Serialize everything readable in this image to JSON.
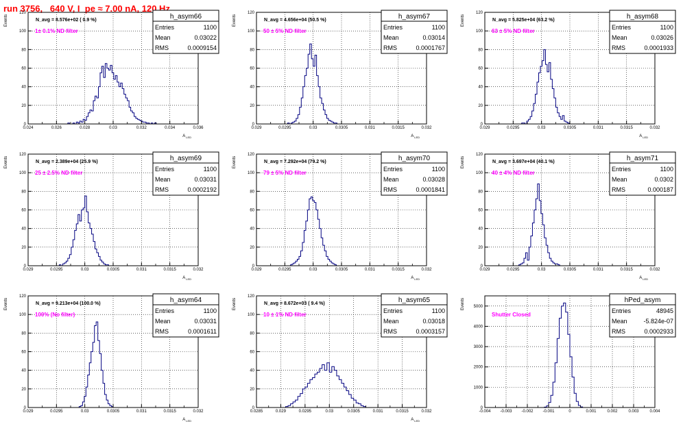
{
  "canvas": {
    "title": "run 3756,   640 V, I_pe ≈ 7.00 nA, 120 Hz",
    "title_color": "#ff0000",
    "histogram_color": "#000080",
    "note_color": "#ff00ff"
  },
  "chart_data": [
    {
      "type": "histogram",
      "name": "h_asym66",
      "stats": {
        "entries_label": "Entries",
        "entries": "1100",
        "mean_label": "Mean",
        "mean": "0.03022",
        "rms_label": "RMS",
        "rms": "0.0009154"
      },
      "n_avg_text": "N_avg = 8.576e+02 ( 0.9 %)",
      "filter_text": "1± 0.1% ND filter",
      "ylabel": "Events",
      "xlabel": "A_LED",
      "xlim": [
        0.024,
        0.036
      ],
      "ylim": [
        0,
        120
      ],
      "xticks": [
        0.024,
        0.026,
        0.028,
        0.03,
        0.032,
        0.034,
        0.036
      ],
      "xtick_labels": [
        "0.024",
        "0.026",
        "0.028",
        "0.03",
        "0.032",
        "0.034",
        "0.036"
      ],
      "yticks": [
        0,
        20,
        40,
        60,
        80,
        100,
        120
      ],
      "ytick_labels": [
        "0",
        "20",
        "40",
        "60",
        "80",
        "100",
        "120"
      ],
      "bin_start": 0.0268,
      "bin_width": 0.00012,
      "counts": [
        1,
        0,
        0,
        1,
        0,
        2,
        1,
        3,
        2,
        5,
        4,
        8,
        12,
        15,
        14,
        25,
        30,
        28,
        40,
        55,
        62,
        50,
        65,
        60,
        58,
        63,
        55,
        48,
        52,
        45,
        40,
        44,
        38,
        32,
        28,
        25,
        18,
        14,
        12,
        8,
        6,
        5,
        4,
        3,
        2,
        2,
        1,
        1,
        0,
        1,
        0,
        1
      ]
    },
    {
      "type": "histogram",
      "name": "h_asym67",
      "stats": {
        "entries_label": "Entries",
        "entries": "1100",
        "mean_label": "Mean",
        "mean": "0.03014",
        "rms_label": "RMS",
        "rms": "0.0001767"
      },
      "n_avg_text": "N_avg = 4.656e+04 (50.5 %)",
      "filter_text": "50 ± 5% ND filter",
      "ylabel": "Events",
      "xlabel": "A_LED",
      "xlim": [
        0.029,
        0.032
      ],
      "ylim": [
        0,
        120
      ],
      "xticks": [
        0.029,
        0.0295,
        0.03,
        0.0305,
        0.031,
        0.0315,
        0.032
      ],
      "xtick_labels": [
        "0.029",
        "0.0295",
        "0.03",
        "0.0305",
        "0.031",
        "0.0315",
        "0.032"
      ],
      "yticks": [
        0,
        20,
        40,
        60,
        80,
        100,
        120
      ],
      "ytick_labels": [
        "0",
        "20",
        "40",
        "60",
        "80",
        "100",
        "120"
      ],
      "bin_start": 0.02955,
      "bin_width": 3e-05,
      "counts": [
        1,
        0,
        1,
        2,
        3,
        6,
        10,
        18,
        28,
        40,
        52,
        60,
        75,
        86,
        70,
        62,
        74,
        52,
        40,
        28,
        22,
        15,
        10,
        6,
        4,
        3,
        2,
        1,
        1
      ]
    },
    {
      "type": "histogram",
      "name": "h_asym68",
      "stats": {
        "entries_label": "Entries",
        "entries": "1100",
        "mean_label": "Mean",
        "mean": "0.03026",
        "rms_label": "RMS",
        "rms": "0.0001933"
      },
      "n_avg_text": "N_avg = 5.825e+04 (63.2 %)",
      "filter_text": "63 ± 5% ND filter",
      "ylabel": "Events",
      "xlabel": "A_LED",
      "xlim": [
        0.029,
        0.032
      ],
      "ylim": [
        0,
        120
      ],
      "xticks": [
        0.029,
        0.0295,
        0.03,
        0.0305,
        0.031,
        0.0315,
        0.032
      ],
      "xtick_labels": [
        "0.029",
        "0.0295",
        "0.03",
        "0.0305",
        "0.031",
        "0.0315",
        "0.032"
      ],
      "yticks": [
        0,
        20,
        40,
        60,
        80,
        100,
        120
      ],
      "ytick_labels": [
        "0",
        "20",
        "40",
        "60",
        "80",
        "100",
        "120"
      ],
      "bin_start": 0.02965,
      "bin_width": 3e-05,
      "counts": [
        1,
        1,
        0,
        3,
        5,
        8,
        14,
        22,
        32,
        45,
        55,
        62,
        68,
        80,
        64,
        56,
        66,
        48,
        38,
        28,
        18,
        12,
        8,
        5,
        9,
        3,
        2,
        1
      ]
    },
    {
      "type": "histogram",
      "name": "h_asym69",
      "stats": {
        "entries_label": "Entries",
        "entries": "1100",
        "mean_label": "Mean",
        "mean": "0.03031",
        "rms_label": "RMS",
        "rms": "0.0002192"
      },
      "n_avg_text": "N_avg = 2.389e+04 (25.9 %)",
      "filter_text": "25 ± 2.5% ND filter",
      "ylabel": "Events",
      "xlabel": "A_LED",
      "xlim": [
        0.029,
        0.032
      ],
      "ylim": [
        0,
        120
      ],
      "xticks": [
        0.029,
        0.0295,
        0.03,
        0.0305,
        0.031,
        0.0315,
        0.032
      ],
      "xtick_labels": [
        "0.029",
        "0.0295",
        "0.03",
        "0.0305",
        "0.031",
        "0.0315",
        "0.032"
      ],
      "yticks": [
        0,
        20,
        40,
        60,
        80,
        100,
        120
      ],
      "ytick_labels": [
        "0",
        "20",
        "40",
        "60",
        "80",
        "100",
        "120"
      ],
      "bin_start": 0.02955,
      "bin_width": 3e-05,
      "counts": [
        1,
        0,
        2,
        3,
        5,
        8,
        12,
        20,
        28,
        38,
        45,
        55,
        48,
        60,
        62,
        75,
        58,
        46,
        40,
        34,
        26,
        18,
        14,
        10,
        6,
        4,
        2,
        1,
        1
      ]
    },
    {
      "type": "histogram",
      "name": "h_asym70",
      "stats": {
        "entries_label": "Entries",
        "entries": "1100",
        "mean_label": "Mean",
        "mean": "0.03028",
        "rms_label": "RMS",
        "rms": "0.0001841"
      },
      "n_avg_text": "N_avg = 7.292e+04 (79.2 %)",
      "filter_text": "79 ± 5% ND filter",
      "ylabel": "Events",
      "xlabel": "A_LED",
      "xlim": [
        0.029,
        0.032
      ],
      "ylim": [
        0,
        120
      ],
      "xticks": [
        0.029,
        0.0295,
        0.03,
        0.0305,
        0.031,
        0.0315,
        0.032
      ],
      "xtick_labels": [
        "0.029",
        "0.0295",
        "0.03",
        "0.0305",
        "0.031",
        "0.0315",
        "0.032"
      ],
      "yticks": [
        0,
        20,
        40,
        60,
        80,
        100,
        120
      ],
      "ytick_labels": [
        "0",
        "20",
        "40",
        "60",
        "80",
        "100",
        "120"
      ],
      "bin_start": 0.0296,
      "bin_width": 3e-05,
      "counts": [
        1,
        2,
        3,
        5,
        7,
        10,
        16,
        25,
        38,
        48,
        60,
        72,
        74,
        70,
        68,
        60,
        50,
        40,
        30,
        22,
        16,
        10,
        7,
        5,
        3,
        2,
        1
      ]
    },
    {
      "type": "histogram",
      "name": "h_asym71",
      "stats": {
        "entries_label": "Entries",
        "entries": "1100",
        "mean_label": "Mean",
        "mean": "0.0302",
        "rms_label": "RMS",
        "rms": "0.000187"
      },
      "n_avg_text": "N_avg = 3.697e+04 (40.1 %)",
      "filter_text": "40 ± 4% ND filter",
      "ylabel": "Events",
      "xlabel": "A_LED",
      "xlim": [
        0.029,
        0.032
      ],
      "ylim": [
        0,
        120
      ],
      "xticks": [
        0.029,
        0.0295,
        0.03,
        0.0305,
        0.031,
        0.0315,
        0.032
      ],
      "xtick_labels": [
        "0.029",
        "0.0295",
        "0.03",
        "0.0305",
        "0.031",
        "0.0315",
        "0.032"
      ],
      "yticks": [
        0,
        20,
        40,
        60,
        80,
        100,
        120
      ],
      "ytick_labels": [
        "0",
        "20",
        "40",
        "60",
        "80",
        "100",
        "120"
      ],
      "bin_start": 0.0296,
      "bin_width": 3e-05,
      "counts": [
        1,
        2,
        3,
        8,
        14,
        6,
        20,
        32,
        46,
        60,
        72,
        88,
        70,
        56,
        44,
        30,
        22,
        14,
        8,
        5,
        3,
        2,
        2,
        1
      ]
    },
    {
      "type": "histogram",
      "name": "h_asym64",
      "stats": {
        "entries_label": "Entries",
        "entries": "1100",
        "mean_label": "Mean",
        "mean": "0.03031",
        "rms_label": "RMS",
        "rms": "0.0001611"
      },
      "n_avg_text": "N_avg = 9.213e+04 (100.0 %)",
      "filter_text": "100% (No filter)",
      "ylabel": "Events",
      "xlabel": "A_LED",
      "xlim": [
        0.029,
        0.032
      ],
      "ylim": [
        0,
        120
      ],
      "xticks": [
        0.029,
        0.0295,
        0.03,
        0.0305,
        0.031,
        0.0315,
        0.032
      ],
      "xtick_labels": [
        "0.029",
        "0.0295",
        "0.03",
        "0.0305",
        "0.031",
        "0.0315",
        "0.032"
      ],
      "yticks": [
        0,
        20,
        40,
        60,
        80,
        100,
        120
      ],
      "ytick_labels": [
        "0",
        "20",
        "40",
        "60",
        "80",
        "100",
        "120"
      ],
      "bin_start": 0.0299,
      "bin_width": 3e-05,
      "counts": [
        1,
        2,
        6,
        12,
        22,
        35,
        48,
        60,
        70,
        88,
        92,
        72,
        58,
        40,
        26,
        14,
        8,
        4,
        2,
        1
      ]
    },
    {
      "type": "histogram",
      "name": "h_asym65",
      "stats": {
        "entries_label": "Entries",
        "entries": "1100",
        "mean_label": "Mean",
        "mean": "0.03018",
        "rms_label": "RMS",
        "rms": "0.0003157"
      },
      "n_avg_text": "N_avg = 8.672e+03 ( 9.4 %)",
      "filter_text": "10 ± 1% ND filter",
      "ylabel": "Events",
      "xlabel": "A_LED",
      "xlim": [
        0.0285,
        0.032
      ],
      "ylim": [
        0,
        120
      ],
      "xticks": [
        0.0285,
        0.029,
        0.0295,
        0.03,
        0.0305,
        0.031,
        0.0315,
        0.032
      ],
      "xtick_labels": [
        "0.0285",
        "0.029",
        "0.0295",
        "0.03",
        "0.0305",
        "0.031",
        "0.0315",
        "0.032"
      ],
      "yticks": [
        0,
        20,
        40,
        60,
        80,
        100,
        120
      ],
      "ytick_labels": [
        "0",
        "20",
        "40",
        "60",
        "80",
        "100",
        "120"
      ],
      "bin_start": 0.0291,
      "bin_width": 5e-05,
      "counts": [
        1,
        2,
        4,
        6,
        8,
        12,
        15,
        20,
        22,
        26,
        30,
        32,
        36,
        38,
        42,
        46,
        40,
        48,
        38,
        44,
        40,
        34,
        30,
        26,
        22,
        18,
        14,
        10,
        8,
        5,
        4,
        2,
        1
      ]
    },
    {
      "type": "histogram",
      "name": "hPed_asym",
      "stats": {
        "entries_label": "Entries",
        "entries": "48945",
        "mean_label": "Mean",
        "mean": "-5.824e-07",
        "rms_label": "RMS",
        "rms": "0.0002933"
      },
      "n_avg_text": "",
      "filter_text": "Shutter Closed",
      "ylabel": "Events",
      "xlabel": "",
      "xlim": [
        -0.004,
        0.004
      ],
      "ylim": [
        0,
        5500
      ],
      "xticks": [
        -0.004,
        -0.003,
        -0.002,
        -0.001,
        0,
        0.001,
        0.002,
        0.003,
        0.004
      ],
      "xtick_labels": [
        "-0.004",
        "-0.003",
        "-0.002",
        "-0.001",
        "0",
        "0.001",
        "0.002",
        "0.003",
        "0.004"
      ],
      "yticks": [
        0,
        1000,
        2000,
        3000,
        4000,
        5000
      ],
      "ytick_labels": [
        "0",
        "1000",
        "2000",
        "3000",
        "4000",
        "5000"
      ],
      "bin_start": -0.0012,
      "bin_width": 0.0001,
      "counts": [
        20,
        80,
        250,
        600,
        1250,
        2200,
        3400,
        4400,
        5000,
        5150,
        4700,
        3600,
        2500,
        1500,
        700,
        300,
        100,
        30
      ]
    }
  ]
}
